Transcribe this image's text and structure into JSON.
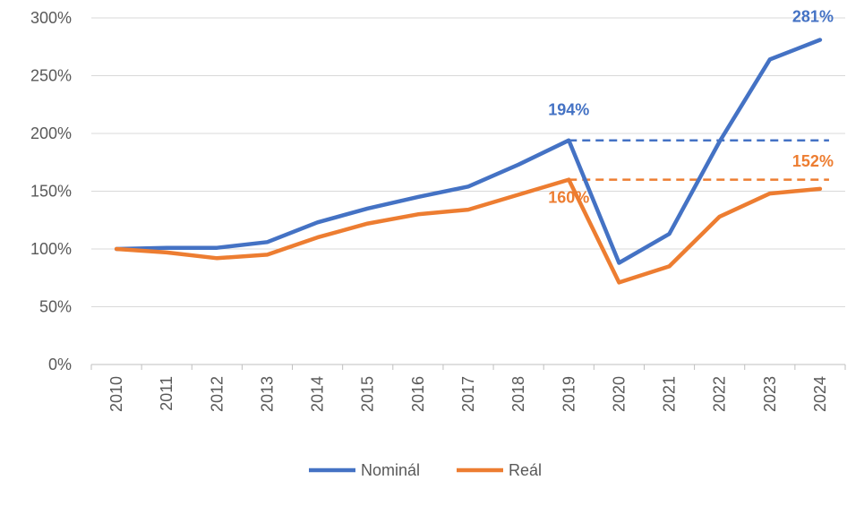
{
  "chart_data": {
    "type": "line",
    "title": "",
    "xlabel": "",
    "ylabel": "",
    "x": [
      "2010",
      "2011",
      "2012",
      "2013",
      "2014",
      "2015",
      "2016",
      "2017",
      "2018",
      "2019",
      "2020",
      "2021",
      "2022",
      "2023",
      "2024"
    ],
    "ylim": [
      0,
      300
    ],
    "yticks": [
      "0%",
      "50%",
      "100%",
      "150%",
      "200%",
      "250%",
      "300%"
    ],
    "grid": "horizontal",
    "legend_position": "bottom",
    "series": [
      {
        "name": "Nominál",
        "color": "#4472C4",
        "values": [
          100,
          101,
          101,
          106,
          123,
          135,
          145,
          154,
          173,
          194,
          88,
          113,
          193,
          264,
          281
        ]
      },
      {
        "name": "Reál",
        "color": "#ED7D31",
        "values": [
          100,
          97,
          92,
          95,
          110,
          122,
          130,
          134,
          147,
          160,
          71,
          85,
          128,
          148,
          152
        ]
      }
    ],
    "reference_lines": [
      {
        "series": "Nominál",
        "value": 194,
        "from": "2019",
        "to": "2024",
        "style": "dashed"
      },
      {
        "series": "Reál",
        "value": 160,
        "from": "2019",
        "to": "2024",
        "style": "dashed"
      }
    ],
    "annotations": [
      {
        "text": "194%",
        "x": "2019",
        "series": "Nominál",
        "color": "#4472C4"
      },
      {
        "text": "160%",
        "x": "2019",
        "series": "Reál",
        "color": "#ED7D31"
      },
      {
        "text": "281%",
        "x": "2024",
        "series": "Nominál",
        "color": "#4472C4"
      },
      {
        "text": "152%",
        "x": "2024",
        "series": "Reál",
        "color": "#ED7D31"
      }
    ]
  }
}
